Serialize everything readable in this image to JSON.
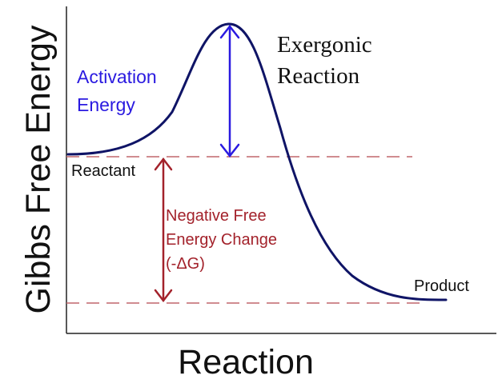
{
  "axes": {
    "xlabel": "Reaction",
    "ylabel": "Gibbs Free Energy"
  },
  "title": {
    "line1": "Exergonic",
    "line2": "Reaction"
  },
  "labels": {
    "activation_line1": "Activation",
    "activation_line2": "Energy",
    "reactant": "Reactant",
    "product": "Product",
    "delta_line1": "Negative Free",
    "delta_line2": "Energy Change",
    "delta_line3": "(-ΔG)"
  },
  "colors": {
    "curve": "#0f1466",
    "activation": "#2a1ae0",
    "delta": "#a3222b",
    "dashed": "#c0666b",
    "text": "#111111"
  }
}
